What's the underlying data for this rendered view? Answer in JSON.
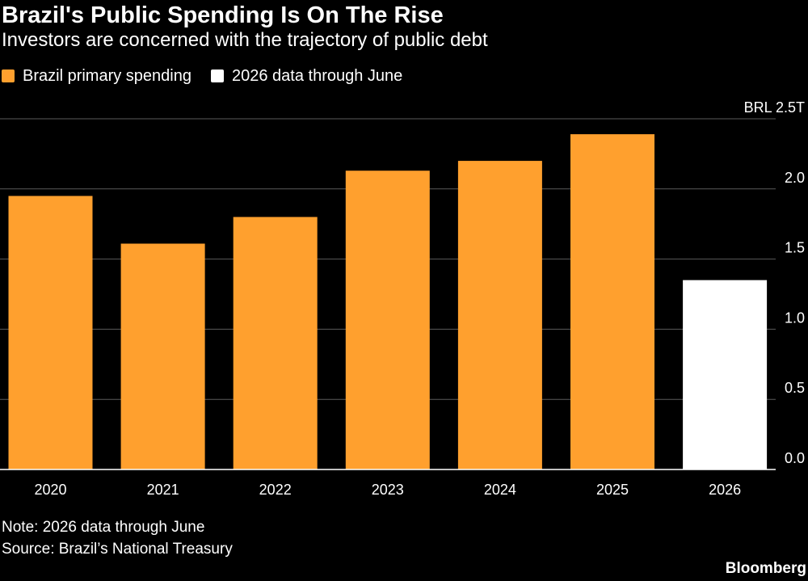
{
  "title": "Brazil's Public Spending Is On The Rise",
  "subtitle": "Investors are concerned with the trajectory of public debt",
  "legend": [
    {
      "label": "Brazil primary spending",
      "color": "#ffa02e"
    },
    {
      "label": "2026 data through June",
      "color": "#ffffff"
    }
  ],
  "note": "Note: 2026 data through June",
  "source": "Source: Brazil’s National Treasury",
  "brand": "Bloomberg",
  "chart_data": {
    "type": "bar",
    "categories": [
      "2020",
      "2021",
      "2022",
      "2023",
      "2024",
      "2025",
      "2026"
    ],
    "values": [
      1.95,
      1.61,
      1.8,
      2.13,
      2.2,
      2.39,
      1.35
    ],
    "colors": [
      "#ffa02e",
      "#ffa02e",
      "#ffa02e",
      "#ffa02e",
      "#ffa02e",
      "#ffa02e",
      "#ffffff"
    ],
    "ylim": [
      0,
      2.5
    ],
    "yticks": [
      0,
      0.5,
      1.0,
      1.5,
      2.0,
      2.5
    ],
    "ytick_labels": [
      "0.0",
      "0.5",
      "1.0",
      "1.5",
      "2.0",
      "BRL 2.5T"
    ],
    "grid": true,
    "axis_position": "right"
  }
}
